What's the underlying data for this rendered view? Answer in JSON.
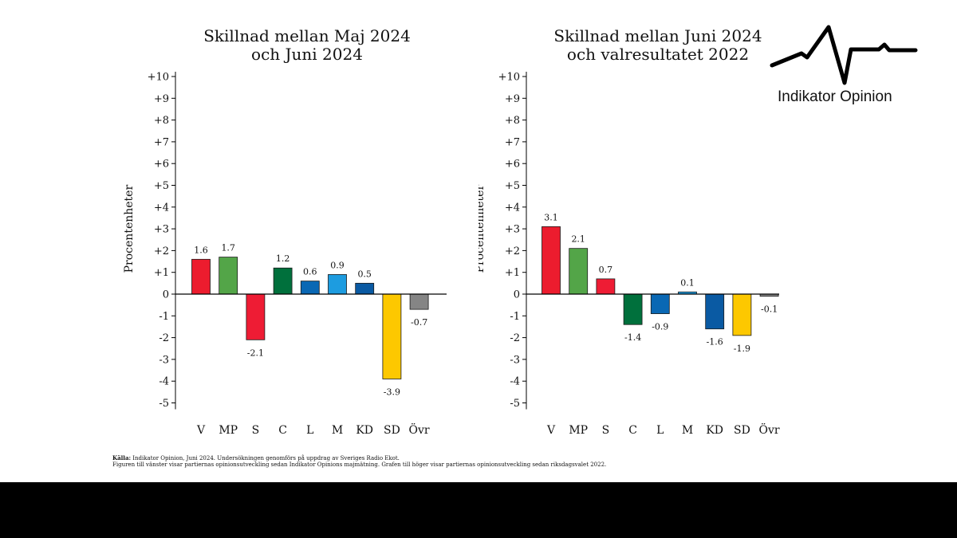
{
  "logo": {
    "text": "Indikator Opinion"
  },
  "footnote": {
    "source_label": "Källa:",
    "source_text": " Indikator Opinion, Juni 2024. Undersökningen genomförs på uppdrag av Sveriges Radio Ekot.",
    "note_text": "Figuren till vänster visar partiernas opinionsutveckling sedan Indikator Opinions majmätning. Grafen till höger visar partiernas opinionsutveckling sedan riksdagsvalet 2022."
  },
  "colors": {
    "V": "#ec1c2e",
    "MP": "#53a548",
    "S": "#ee1c34",
    "C": "#00703c",
    "L": "#0a68b4",
    "M": "#1d9ce0",
    "KD": "#0a5aa3",
    "SD": "#fdc800",
    "Övr": "#858585"
  },
  "chart_data": [
    {
      "type": "bar",
      "title": "Skillnad mellan Maj 2024\noch Juni 2024",
      "xlabel": "",
      "ylabel": "Procentenheter",
      "ylim": [
        -5,
        10
      ],
      "yticks": [
        "+10",
        "+9",
        "+8",
        "+7",
        "+6",
        "+5",
        "+4",
        "+3",
        "+2",
        "+1",
        "0",
        "-1",
        "-2",
        "-3",
        "-4",
        "-5"
      ],
      "categories": [
        "V",
        "MP",
        "S",
        "C",
        "L",
        "M",
        "KD",
        "SD",
        "Övr"
      ],
      "values": [
        1.6,
        1.7,
        -2.1,
        1.2,
        0.6,
        0.9,
        0.5,
        -3.9,
        -0.7
      ],
      "value_labels": [
        "1.6",
        "1.7",
        "-2.1",
        "1.2",
        "0.6",
        "0.9",
        "0.5",
        "-3.9",
        "-0.7"
      ]
    },
    {
      "type": "bar",
      "title": "Skillnad mellan Juni 2024\noch valresultatet 2022",
      "xlabel": "",
      "ylabel": "Procentenheter",
      "ylim": [
        -5,
        10
      ],
      "yticks": [
        "+10",
        "+9",
        "+8",
        "+7",
        "+6",
        "+5",
        "+4",
        "+3",
        "+2",
        "+1",
        "0",
        "-1",
        "-2",
        "-3",
        "-4",
        "-5"
      ],
      "categories": [
        "V",
        "MP",
        "S",
        "C",
        "L",
        "M",
        "KD",
        "SD",
        "Övr"
      ],
      "values": [
        3.1,
        2.1,
        0.7,
        -1.4,
        -0.9,
        0.1,
        -1.6,
        -1.9,
        -0.1
      ],
      "value_labels": [
        "3.1",
        "2.1",
        "0.7",
        "-1.4",
        "-0.9",
        "0.1",
        "-1.6",
        "-1.9",
        "-0.1"
      ]
    }
  ]
}
